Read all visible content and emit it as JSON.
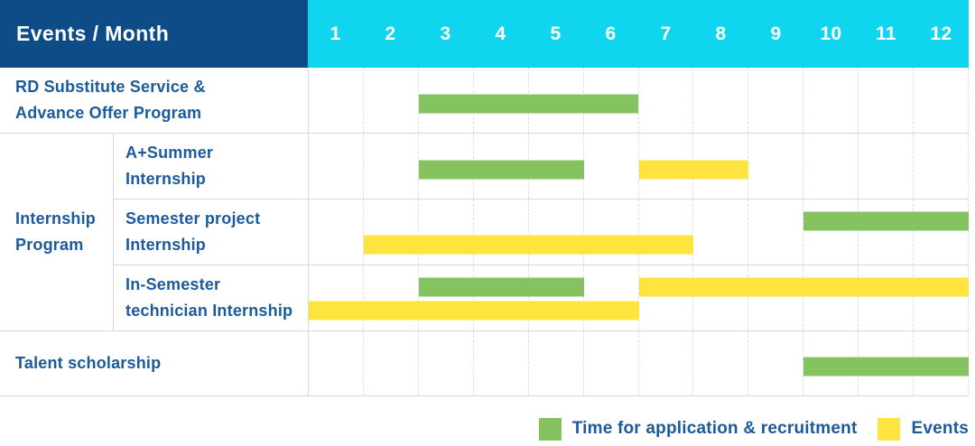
{
  "header": {
    "title": "Events / Month",
    "months": [
      "1",
      "2",
      "3",
      "4",
      "5",
      "6",
      "7",
      "8",
      "9",
      "10",
      "11",
      "12"
    ]
  },
  "colors": {
    "navy": "#0d4c86",
    "cyan": "#0fd6ee",
    "green": "#85c361",
    "yellow": "#ffe33e",
    "blue": "#1b5a9c",
    "grid": "#d9d9d9"
  },
  "legend": {
    "items": [
      {
        "swatch": "green",
        "label": "Time for application & recruitment"
      },
      {
        "swatch": "yellow",
        "label": "Events"
      }
    ]
  },
  "chart_data": {
    "type": "gantt",
    "x_axis": {
      "label": "Month",
      "ticks": [
        1,
        2,
        3,
        4,
        5,
        6,
        7,
        8,
        9,
        10,
        11,
        12
      ],
      "range": [
        1,
        12
      ],
      "grid": "dashed-vertical"
    },
    "legend_meaning": {
      "green": "Time for application & recruitment",
      "yellow": "Events"
    },
    "rows": [
      {
        "group": null,
        "label": "RD Substitute Service &\nAdvance Offer Program",
        "bars": [
          {
            "color": "green",
            "from": 3,
            "to": 6,
            "lane": "center"
          }
        ]
      },
      {
        "group": "Internship Program",
        "label": "A+Summer\nInternship",
        "bars": [
          {
            "color": "green",
            "from": 3,
            "to": 5,
            "lane": "center"
          },
          {
            "color": "yellow",
            "from": 7,
            "to": 8,
            "lane": "center"
          }
        ]
      },
      {
        "group": "Internship Program",
        "label": "Semester project\nInternship",
        "bars": [
          {
            "color": "green",
            "from": 10,
            "to": 12,
            "lane": "top"
          },
          {
            "color": "yellow",
            "from": 2,
            "to": 7,
            "lane": "bottom"
          }
        ]
      },
      {
        "group": "Internship Program",
        "label": "In-Semester\ntechnician Internship",
        "bars": [
          {
            "color": "green",
            "from": 3,
            "to": 5,
            "lane": "top"
          },
          {
            "color": "yellow",
            "from": 7,
            "to": 12,
            "lane": "top"
          },
          {
            "color": "yellow",
            "from": 1,
            "to": 6,
            "lane": "bottom"
          }
        ]
      },
      {
        "group": null,
        "label": "Talent scholarship",
        "bars": [
          {
            "color": "green",
            "from": 10,
            "to": 12,
            "lane": "center"
          }
        ]
      }
    ]
  }
}
